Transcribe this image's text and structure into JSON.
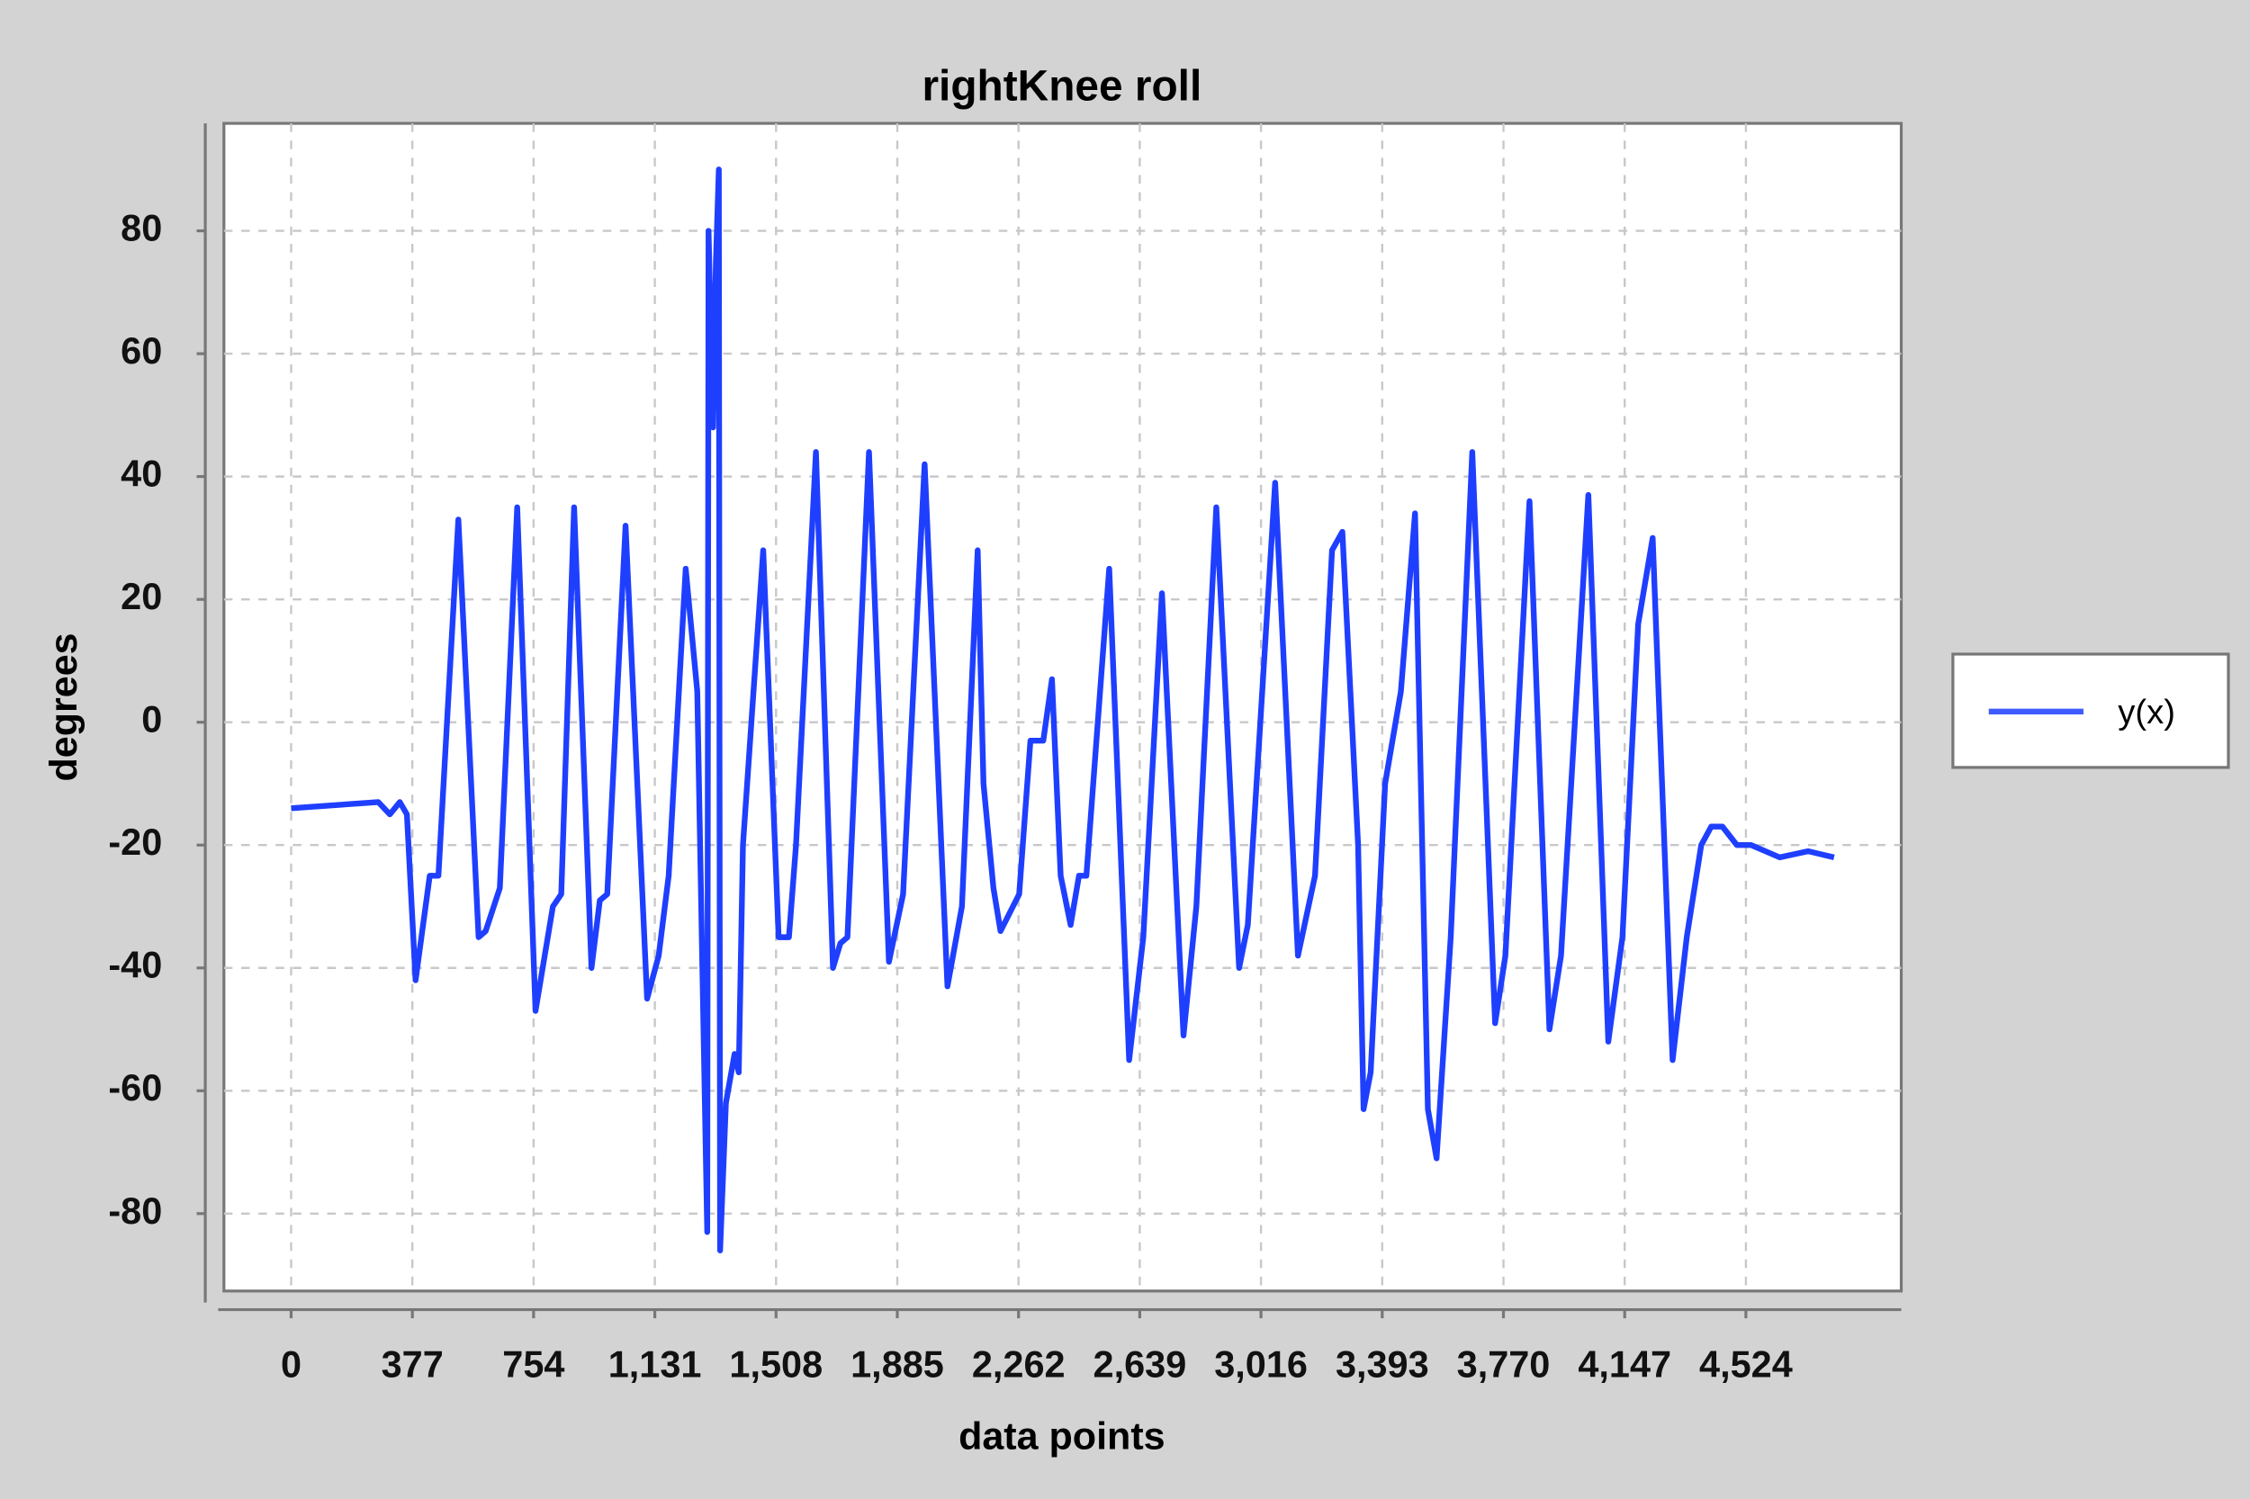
{
  "chart_data": {
    "type": "line",
    "title": "rightKnee roll",
    "xlabel": "data points",
    "ylabel": "degrees",
    "xlim": [
      -209,
      5007
    ],
    "ylim": [
      -92.6,
      97.5
    ],
    "xticks": [
      0,
      377,
      754,
      {
        "value": 1131,
        "label": "1,131"
      },
      {
        "value": 1508,
        "label": "1,508"
      },
      {
        "value": 1885,
        "label": "1,885"
      },
      {
        "value": 2262,
        "label": "2,262"
      },
      {
        "value": 2639,
        "label": "2,639"
      },
      {
        "value": 3016,
        "label": "3,016"
      },
      {
        "value": 3393,
        "label": "3,393"
      },
      {
        "value": 3770,
        "label": "3,770"
      },
      {
        "value": 4147,
        "label": "4,147"
      },
      {
        "value": 4524,
        "label": "4,524"
      }
    ],
    "yticks": [
      -80,
      -60,
      -40,
      -20,
      0,
      20,
      40,
      60,
      80
    ],
    "grid": true,
    "legend": "right",
    "x": [
      0,
      271,
      307,
      338,
      360,
      387,
      431,
      458,
      520,
      583,
      605,
      649,
      703,
      760,
      814,
      840,
      880,
      934,
      960,
      983,
      1040,
      1107,
      1143,
      1174,
      1227,
      1263,
      1294,
      1298,
      1312,
      1321,
      1330,
      1334,
      1352,
      1379,
      1392,
      1405,
      1468,
      1516,
      1548,
      1570,
      1632,
      1685,
      1708,
      1730,
      1797,
      1859,
      1903,
      1970,
      2041,
      2086,
      2135,
      2153,
      2184,
      2206,
      2264,
      2299,
      2339,
      2366,
      2393,
      2424,
      2450,
      2473,
      2544,
      2606,
      2650,
      2708,
      2775,
      2815,
      2877,
      2948,
      2975,
      3060,
      3131,
      3184,
      3237,
      3269,
      3318,
      3335,
      3357,
      3402,
      3451,
      3495,
      3535,
      3562,
      3606,
      3673,
      3744,
      3776,
      3851,
      3913,
      3949,
      4034,
      4096,
      4140,
      4189,
      4234,
      4296,
      4340,
      4385,
      4416,
      4451,
      4496,
      4540,
      4629,
      4718,
      4798
    ],
    "series": [
      {
        "name": "y(x)",
        "color": "#1f3fff",
        "values": [
          -14,
          -13,
          -15,
          -13,
          -15,
          -42,
          -25,
          -25,
          33,
          -35,
          -34,
          -27,
          35,
          -47,
          -30,
          -28,
          35,
          -40,
          -29,
          -28,
          32,
          -45,
          -38,
          -25,
          25,
          5,
          -83,
          80,
          48,
          75,
          90,
          -86,
          -62,
          -54,
          -57,
          -20,
          28,
          -35,
          -35,
          -20,
          44,
          -40,
          -36,
          -35,
          44,
          -39,
          -28,
          42,
          -43,
          -30,
          28,
          -10,
          -27,
          -34,
          -28,
          -3,
          -3,
          7,
          -25,
          -33,
          -25,
          -25,
          25,
          -55,
          -35,
          21,
          -51,
          -30,
          35,
          -40,
          -33,
          39,
          -38,
          -25,
          28,
          31,
          -20,
          -63,
          -57,
          -10,
          5,
          34,
          -63,
          -71,
          -35,
          44,
          -49,
          -38,
          36,
          -50,
          -38,
          37,
          -52,
          -35,
          16,
          30,
          -55,
          -35,
          -20,
          -17,
          -17,
          -20,
          -20,
          -22,
          -21,
          -22
        ]
      }
    ]
  }
}
